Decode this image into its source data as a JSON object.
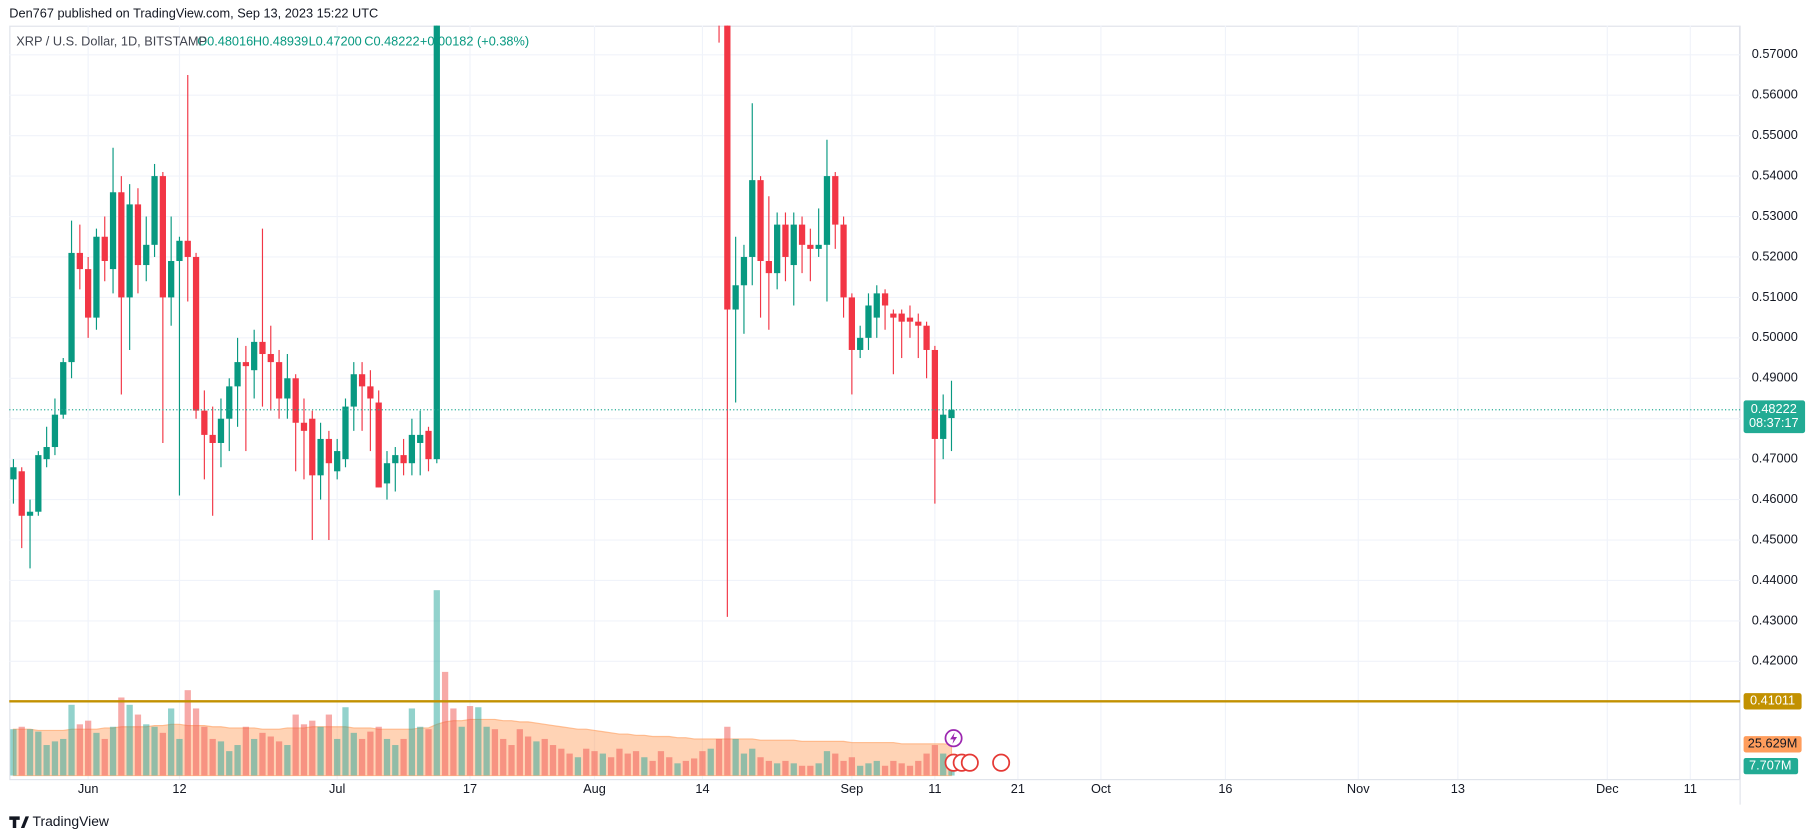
{
  "chart_data": {
    "type": "candlestick",
    "header": "Den767 published on TradingView.com, Sep 13, 2023 15:22 UTC",
    "symbol": "XRP / U.S. Dollar, 1D, BITSTAMP",
    "legend": [
      "O0.48016",
      "H0.48939",
      "L0.47200",
      "C0.48222",
      "+0.00182 (+0.38%)"
    ],
    "up_color": "#089981",
    "down_color": "#f23645",
    "x": [
      143,
      144,
      145,
      146,
      147,
      148,
      149,
      150,
      151,
      152,
      153,
      154,
      155,
      156,
      157,
      158,
      159,
      160,
      161,
      162,
      163,
      164,
      165,
      166,
      167,
      168,
      169,
      170,
      171,
      172,
      173,
      174,
      175,
      176,
      177,
      178,
      179,
      180,
      181,
      182,
      183,
      184,
      185,
      186,
      187,
      188,
      189,
      190,
      191,
      192,
      193,
      194,
      228,
      229,
      230,
      231,
      232,
      233,
      234,
      235,
      236,
      237,
      238,
      239,
      240,
      241,
      242,
      243,
      244,
      245,
      246,
      247,
      248,
      249,
      250,
      251,
      252,
      253,
      254,
      255,
      256
    ],
    "open": [
      0.465,
      0.467,
      0.456,
      0.457,
      0.47,
      0.473,
      0.481,
      0.494,
      0.521,
      0.517,
      0.505,
      0.525,
      0.517,
      0.536,
      0.51,
      0.533,
      0.518,
      0.523,
      0.54,
      0.51,
      0.519,
      0.524,
      0.52,
      0.482,
      0.476,
      0.474,
      0.48,
      0.488,
      0.494,
      0.492,
      0.499,
      0.496,
      0.494,
      0.485,
      0.49,
      0.479,
      0.48,
      0.466,
      0.475,
      0.467,
      0.47,
      0.483,
      0.491,
      0.488,
      0.484,
      0.464,
      0.469,
      0.471,
      0.469,
      0.474,
      0.477,
      0.47,
      0.625,
      0.605,
      0.507,
      0.513,
      0.52,
      0.539,
      0.519,
      0.516,
      0.528,
      0.518,
      0.528,
      0.523,
      0.522,
      0.523,
      0.54,
      0.528,
      0.51,
      0.497,
      0.5,
      0.505,
      0.511,
      0.506,
      0.506,
      0.505,
      0.504,
      0.503,
      0.497,
      0.475,
      0.48016
    ],
    "high": [
      0.47,
      0.468,
      0.46,
      0.472,
      0.478,
      0.485,
      0.495,
      0.529,
      0.528,
      0.52,
      0.527,
      0.53,
      0.547,
      0.54,
      0.538,
      0.537,
      0.53,
      0.543,
      0.541,
      0.53,
      0.525,
      0.565,
      0.521,
      0.487,
      0.483,
      0.485,
      0.49,
      0.5,
      0.498,
      0.502,
      0.527,
      0.503,
      0.497,
      0.496,
      0.491,
      0.485,
      0.482,
      0.479,
      0.477,
      0.475,
      0.485,
      0.494,
      0.494,
      0.492,
      0.487,
      0.472,
      0.473,
      0.475,
      0.48,
      0.482,
      0.478,
      0.82,
      0.628,
      0.606,
      0.525,
      0.523,
      0.558,
      0.54,
      0.535,
      0.531,
      0.531,
      0.531,
      0.53,
      0.527,
      0.532,
      0.549,
      0.541,
      0.53,
      0.511,
      0.503,
      0.511,
      0.513,
      0.512,
      0.507,
      0.507,
      0.508,
      0.506,
      0.504,
      0.498,
      0.486,
      0.48939
    ],
    "low": [
      0.459,
      0.448,
      0.443,
      0.456,
      0.468,
      0.471,
      0.48,
      0.49,
      0.512,
      0.5,
      0.502,
      0.514,
      0.511,
      0.486,
      0.497,
      0.511,
      0.514,
      0.52,
      0.474,
      0.503,
      0.461,
      0.509,
      0.48,
      0.465,
      0.456,
      0.468,
      0.472,
      0.478,
      0.472,
      0.485,
      0.483,
      0.482,
      0.48,
      0.48,
      0.467,
      0.465,
      0.45,
      0.46,
      0.45,
      0.465,
      0.468,
      0.477,
      0.477,
      0.472,
      0.463,
      0.46,
      0.462,
      0.466,
      0.466,
      0.466,
      0.467,
      0.469,
      0.573,
      0.431,
      0.484,
      0.501,
      0.513,
      0.505,
      0.502,
      0.512,
      0.514,
      0.508,
      0.516,
      0.514,
      0.52,
      0.509,
      0.522,
      0.505,
      0.486,
      0.495,
      0.497,
      0.5,
      0.502,
      0.491,
      0.495,
      0.5,
      0.495,
      0.49,
      0.459,
      0.47,
      0.472
    ],
    "close": [
      0.468,
      0.456,
      0.457,
      0.471,
      0.473,
      0.481,
      0.494,
      0.521,
      0.517,
      0.505,
      0.525,
      0.519,
      0.536,
      0.51,
      0.533,
      0.518,
      0.523,
      0.54,
      0.51,
      0.519,
      0.524,
      0.52,
      0.482,
      0.476,
      0.474,
      0.48,
      0.488,
      0.494,
      0.493,
      0.499,
      0.496,
      0.494,
      0.485,
      0.49,
      0.479,
      0.477,
      0.466,
      0.475,
      0.469,
      0.472,
      0.483,
      0.491,
      0.488,
      0.485,
      0.463,
      0.469,
      0.471,
      0.469,
      0.476,
      0.476,
      0.47,
      0.8,
      0.605,
      0.507,
      0.513,
      0.52,
      0.539,
      0.519,
      0.516,
      0.528,
      0.52,
      0.528,
      0.523,
      0.522,
      0.523,
      0.54,
      0.528,
      0.51,
      0.497,
      0.5,
      0.508,
      0.511,
      0.508,
      0.505,
      0.504,
      0.504,
      0.503,
      0.497,
      0.475,
      0.481,
      0.48222
    ],
    "xlim": [
      142.5,
      351
    ],
    "xticks": [
      {
        "value": 152,
        "label": "Jun"
      },
      {
        "value": 163,
        "label": "12"
      },
      {
        "value": 182,
        "label": "Jul"
      },
      {
        "value": 198,
        "label": "17"
      },
      {
        "value": 213,
        "label": "Aug"
      },
      {
        "value": 226,
        "label": "14"
      },
      {
        "value": 244,
        "label": "Sep"
      },
      {
        "value": 254,
        "label": "11"
      },
      {
        "value": 264,
        "label": "21"
      },
      {
        "value": 274,
        "label": "Oct"
      },
      {
        "value": 289,
        "label": "16"
      },
      {
        "value": 305,
        "label": "Nov"
      },
      {
        "value": 317,
        "label": "13"
      },
      {
        "value": 335,
        "label": "Dec"
      },
      {
        "value": 345,
        "label": "11"
      }
    ],
    "ylim": [
      0.3909,
      0.5772
    ],
    "yticks": [
      {
        "value": 0.42,
        "label": "0.42000"
      },
      {
        "value": 0.43,
        "label": "0.43000"
      },
      {
        "value": 0.44,
        "label": "0.44000"
      },
      {
        "value": 0.45,
        "label": "0.45000"
      },
      {
        "value": 0.46,
        "label": "0.46000"
      },
      {
        "value": 0.47,
        "label": "0.47000"
      },
      {
        "value": 0.48,
        "label": "0.48000"
      },
      {
        "value": 0.49,
        "label": "0.49000"
      },
      {
        "value": 0.5,
        "label": "0.50000"
      },
      {
        "value": 0.51,
        "label": "0.51000"
      },
      {
        "value": 0.52,
        "label": "0.52000"
      },
      {
        "value": 0.53,
        "label": "0.53000"
      },
      {
        "value": 0.54,
        "label": "0.54000"
      },
      {
        "value": 0.55,
        "label": "0.55000"
      },
      {
        "value": 0.56,
        "label": "0.56000"
      },
      {
        "value": 0.57,
        "label": "0.57000"
      }
    ],
    "grid": true,
    "last_price": {
      "value": 0.48222,
      "countdown": "08:37:17",
      "color": "#22ab94"
    },
    "level": {
      "value": 0.41011,
      "color": "#c29100"
    },
    "volume": {
      "ylim": [
        0,
        615
      ],
      "x": [
        143,
        144,
        145,
        146,
        147,
        148,
        149,
        150,
        151,
        152,
        153,
        154,
        155,
        156,
        157,
        158,
        159,
        160,
        161,
        162,
        163,
        164,
        165,
        166,
        167,
        168,
        169,
        170,
        171,
        172,
        173,
        174,
        175,
        176,
        177,
        178,
        179,
        180,
        181,
        182,
        183,
        184,
        185,
        186,
        187,
        188,
        189,
        190,
        191,
        192,
        193,
        194,
        195,
        196,
        197,
        198,
        199,
        200,
        201,
        202,
        203,
        204,
        205,
        206,
        207,
        208,
        209,
        210,
        211,
        212,
        213,
        214,
        215,
        216,
        217,
        218,
        219,
        220,
        221,
        222,
        223,
        224,
        225,
        226,
        227,
        228,
        229,
        230,
        231,
        232,
        233,
        234,
        235,
        236,
        237,
        238,
        239,
        240,
        241,
        242,
        243,
        244,
        245,
        246,
        247,
        248,
        249,
        250,
        251,
        252,
        253,
        254,
        255,
        256
      ],
      "values": [
        38,
        40,
        38,
        36,
        25,
        28,
        30,
        58,
        42,
        45,
        35,
        30,
        40,
        64,
        58,
        50,
        42,
        40,
        35,
        55,
        30,
        70,
        55,
        40,
        30,
        28,
        20,
        25,
        40,
        30,
        35,
        32,
        28,
        25,
        50,
        42,
        45,
        40,
        50,
        30,
        56,
        35,
        30,
        36,
        40,
        30,
        25,
        30,
        55,
        40,
        38,
        152,
        85,
        55,
        40,
        57,
        56,
        40,
        38,
        30,
        25,
        38,
        32,
        28,
        30,
        25,
        22,
        18,
        15,
        22,
        20,
        18,
        15,
        22,
        18,
        20,
        15,
        12,
        20,
        15,
        10,
        12,
        14,
        20,
        22,
        30,
        40,
        30,
        18,
        22,
        15,
        12,
        10,
        12,
        10,
        8,
        8,
        10,
        20,
        18,
        12,
        15,
        8,
        10,
        12,
        8,
        12,
        10,
        8,
        12,
        18,
        25,
        18,
        7.707
      ],
      "colors": [
        "#26a69a",
        "#ef5350",
        "#26a69a",
        "#26a69a",
        "#26a69a",
        "#26a69a",
        "#26a69a",
        "#26a69a",
        "#ef5350",
        "#ef5350",
        "#26a69a",
        "#ef5350",
        "#26a69a",
        "#ef5350",
        "#26a69a",
        "#ef5350",
        "#26a69a",
        "#26a69a",
        "#ef5350",
        "#26a69a",
        "#26a69a",
        "#ef5350",
        "#ef5350",
        "#ef5350",
        "#ef5350",
        "#26a69a",
        "#26a69a",
        "#26a69a",
        "#ef5350",
        "#26a69a",
        "#ef5350",
        "#ef5350",
        "#ef5350",
        "#26a69a",
        "#ef5350",
        "#ef5350",
        "#ef5350",
        "#26a69a",
        "#ef5350",
        "#26a69a",
        "#26a69a",
        "#26a69a",
        "#ef5350",
        "#ef5350",
        "#ef5350",
        "#26a69a",
        "#26a69a",
        "#ef5350",
        "#26a69a",
        "#26a69a",
        "#ef5350",
        "#26a69a",
        "#ef5350",
        "#ef5350",
        "#26a69a",
        "#ef5350",
        "#26a69a",
        "#26a69a",
        "#ef5350",
        "#ef5350",
        "#ef5350",
        "#ef5350",
        "#ef5350",
        "#26a69a",
        "#ef5350",
        "#ef5350",
        "#ef5350",
        "#ef5350",
        "#26a69a",
        "#ef5350",
        "#ef5350",
        "#26a69a",
        "#ef5350",
        "#ef5350",
        "#ef5350",
        "#ef5350",
        "#26a69a",
        "#ef5350",
        "#ef5350",
        "#ef5350",
        "#26a69a",
        "#ef5350",
        "#ef5350",
        "#ef5350",
        "#26a69a",
        "#ef5350",
        "#ef5350",
        "#26a69a",
        "#26a69a",
        "#26a69a",
        "#ef5350",
        "#ef5350",
        "#26a69a",
        "#ef5350",
        "#26a69a",
        "#ef5350",
        "#ef5350",
        "#26a69a",
        "#26a69a",
        "#ef5350",
        "#ef5350",
        "#ef5350",
        "#26a69a",
        "#26a69a",
        "#26a69a",
        "#ef5350",
        "#ef5350",
        "#ef5350",
        "#ef5350",
        "#ef5350",
        "#ef5350",
        "#ef5350",
        "#26a69a",
        "#26a69a"
      ],
      "last": {
        "value": 7.707,
        "label": "7.707M"
      },
      "ma": {
        "color": "#ff9d5c",
        "values": [
          38,
          38,
          38,
          37,
          37,
          37,
          37,
          38,
          38,
          38,
          38,
          39,
          39,
          40,
          40,
          40,
          40,
          41,
          41,
          42,
          42,
          41,
          41,
          41,
          40,
          40,
          39,
          39,
          39,
          39,
          38,
          38,
          38,
          39,
          39,
          39,
          40,
          40,
          40,
          40,
          40,
          39,
          39,
          39,
          38,
          38,
          38,
          38,
          38,
          39,
          39,
          42,
          44,
          45,
          45,
          46,
          46,
          46,
          46,
          45,
          45,
          44,
          44,
          43,
          42,
          41,
          40,
          39,
          38,
          38,
          37,
          36,
          35,
          34,
          34,
          33,
          33,
          32,
          32,
          32,
          31,
          31,
          30,
          30,
          30,
          30,
          30,
          30,
          30,
          30,
          29,
          29,
          29,
          29,
          29,
          28,
          28,
          28,
          28,
          28,
          28,
          27,
          27,
          27,
          27,
          27,
          27,
          26,
          26,
          26,
          26,
          26,
          26,
          25.629
        ],
        "last": {
          "value": 25.629,
          "label": "25.629M"
        }
      }
    },
    "footer": "TradingView"
  }
}
